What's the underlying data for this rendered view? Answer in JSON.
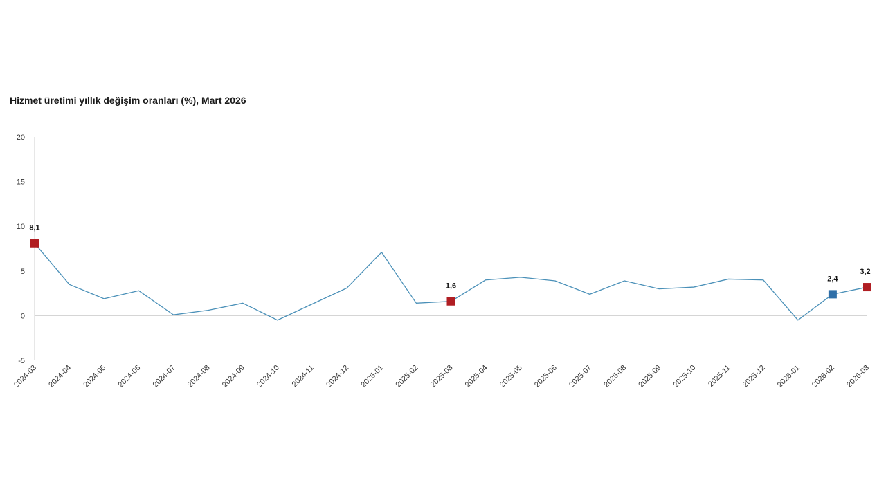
{
  "chart_data": {
    "type": "line",
    "title": "Hizmet üretimi yıllık değişim oranları (%), Mart 2026",
    "xlabel": "",
    "ylabel": "",
    "ylim": [
      -5,
      20
    ],
    "yticks": [
      "20",
      "15",
      "10",
      "5",
      "0",
      "-5"
    ],
    "grid": false,
    "categories": [
      "2024-03",
      "2024-04",
      "2024-05",
      "2024-06",
      "2024-07",
      "2024-08",
      "2024-09",
      "2024-10",
      "2024-11",
      "2024-12",
      "2025-01",
      "2025-02",
      "2025-03",
      "2025-04",
      "2025-05",
      "2025-06",
      "2025-07",
      "2025-08",
      "2025-09",
      "2025-10",
      "2025-11",
      "2025-12",
      "2026-01",
      "2026-02",
      "2026-03"
    ],
    "series": [
      {
        "values": [
          8.1,
          3.5,
          1.9,
          2.8,
          0.1,
          0.6,
          1.4,
          -0.5,
          1.3,
          3.1,
          7.1,
          1.4,
          1.6,
          4.0,
          4.3,
          3.9,
          2.4,
          3.9,
          3.0,
          3.2,
          4.1,
          4.0,
          -0.5,
          2.4,
          3.2
        ],
        "color": "#4a90b8"
      }
    ],
    "highlighted_points": [
      {
        "index": 0,
        "label": "8,1",
        "color": "#b01e23"
      },
      {
        "index": 12,
        "label": "1,6",
        "color": "#b01e23"
      },
      {
        "index": 23,
        "label": "2,4",
        "color": "#2f6fa8"
      },
      {
        "index": 24,
        "label": "3,2",
        "color": "#b01e23"
      }
    ]
  }
}
